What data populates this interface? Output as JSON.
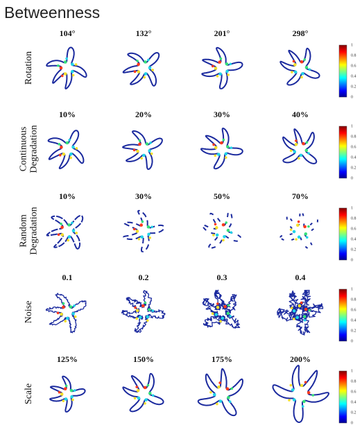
{
  "title": "Betweenness",
  "colorbar_ticks": [
    0,
    0.2,
    0.4,
    0.6,
    0.8,
    1
  ],
  "rows": [
    {
      "label": [
        "Rotation"
      ],
      "columns": [
        "104°",
        "132°",
        "201°",
        "298°"
      ]
    },
    {
      "label": [
        "Continuous",
        "Degradation"
      ],
      "columns": [
        "10%",
        "20%",
        "30%",
        "40%"
      ]
    },
    {
      "label": [
        "Random",
        "Degradation"
      ],
      "columns": [
        "10%",
        "30%",
        "50%",
        "70%"
      ]
    },
    {
      "label": [
        "Noise"
      ],
      "columns": [
        "0.1",
        "0.2",
        "0.3",
        "0.4"
      ]
    },
    {
      "label": [
        "Scale"
      ],
      "columns": [
        "125%",
        "150%",
        "175%",
        "200%"
      ]
    }
  ]
}
